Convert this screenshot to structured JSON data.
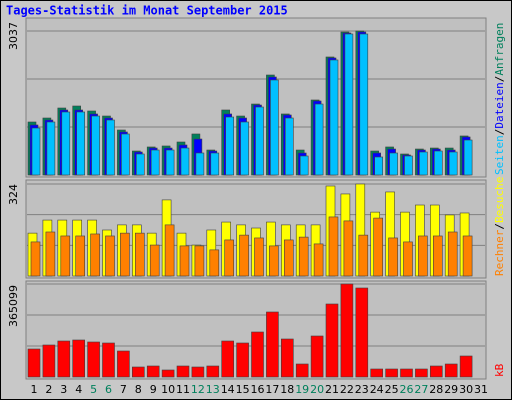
{
  "title": "Tages-Statistik im Monat September 2015",
  "legend_separator": "/",
  "chart_data": [
    {
      "type": "bar",
      "ylim": [
        0,
        3037
      ],
      "yticks": [
        3037
      ],
      "series": [
        {
          "name": "Anfragen",
          "color": "#00805c",
          "values": [
            1118,
            1202,
            1413,
            1455,
            1350,
            1244,
            949,
            506,
            591,
            612,
            696,
            865,
            527,
            1371,
            1244,
            1497,
            2109,
            1287,
            527,
            1582,
            2489,
            3016,
            3037,
            506,
            591,
            443,
            548,
            569,
            569,
            823,
            null
          ]
        },
        {
          "name": "Dateien",
          "color": "#0000ff",
          "values": [
            1055,
            1160,
            1371,
            1371,
            1287,
            1202,
            907,
            485,
            569,
            569,
            633,
            759,
            506,
            1287,
            1202,
            1476,
            2067,
            1266,
            464,
            1561,
            2468,
            2995,
            3016,
            464,
            548,
            422,
            527,
            548,
            527,
            802,
            null
          ]
        },
        {
          "name": "Seiten",
          "color": "#00c0ff",
          "values": [
            991,
            1118,
            1329,
            1329,
            1244,
            1160,
            865,
            443,
            527,
            527,
            569,
            464,
            464,
            1223,
            1118,
            1434,
            2004,
            1202,
            401,
            1497,
            2426,
            2974,
            2974,
            380,
            464,
            401,
            485,
            506,
            485,
            738,
            null
          ]
        }
      ]
    },
    {
      "type": "bar",
      "ylim": [
        0,
        324
      ],
      "yticks": [
        324
      ],
      "series": [
        {
          "name": "Besuche",
          "color": "#ffff00",
          "values": [
            151,
            197,
            197,
            197,
            197,
            162,
            180,
            180,
            151,
            268,
            151,
            109,
            162,
            190,
            180,
            169,
            190,
            180,
            180,
            180,
            317,
            289,
            324,
            225,
            296,
            225,
            250,
            250,
            215,
            222,
            null
          ]
        },
        {
          "name": "Rechner",
          "color": "#ff8000",
          "values": [
            120,
            155,
            141,
            141,
            148,
            141,
            151,
            151,
            109,
            180,
            106,
            106,
            92,
            127,
            144,
            134,
            106,
            127,
            137,
            113,
            208,
            194,
            144,
            204,
            134,
            120,
            141,
            141,
            155,
            141,
            null
          ]
        }
      ]
    },
    {
      "type": "bar",
      "ylim": [
        0,
        365099
      ],
      "yticks": [
        365099
      ],
      "categories": [
        "1",
        "2",
        "3",
        "4",
        "5",
        "6",
        "7",
        "8",
        "9",
        "10",
        "11",
        "12",
        "13",
        "14",
        "15",
        "16",
        "17",
        "18",
        "19",
        "20",
        "21",
        "22",
        "23",
        "24",
        "25",
        "26",
        "27",
        "28",
        "29",
        "30",
        "31"
      ],
      "category_label_colors": [
        "#000000",
        "#000000",
        "#000000",
        "#000000",
        "#00805c",
        "#00805c",
        "#000000",
        "#000000",
        "#000000",
        "#000000",
        "#000000",
        "#00805c",
        "#00805c",
        "#000000",
        "#000000",
        "#000000",
        "#000000",
        "#000000",
        "#00805c",
        "#00805c",
        "#000000",
        "#000000",
        "#000000",
        "#000000",
        "#000000",
        "#00805c",
        "#00805c",
        "#000000",
        "#000000",
        "#000000",
        "#000000"
      ],
      "series": [
        {
          "name": "kB",
          "color": "#ff0000",
          "values": [
            109928,
            125632,
            141336,
            145262,
            137410,
            133484,
            102076,
            39260,
            43186,
            27482,
            43186,
            39260,
            43186,
            141336,
            133484,
            176670,
            255190,
            149188,
            51038,
            160966,
            286598,
            365099,
            349414,
            31408,
            31408,
            31408,
            31408,
            43186,
            51038,
            82446,
            null
          ]
        }
      ]
    }
  ]
}
